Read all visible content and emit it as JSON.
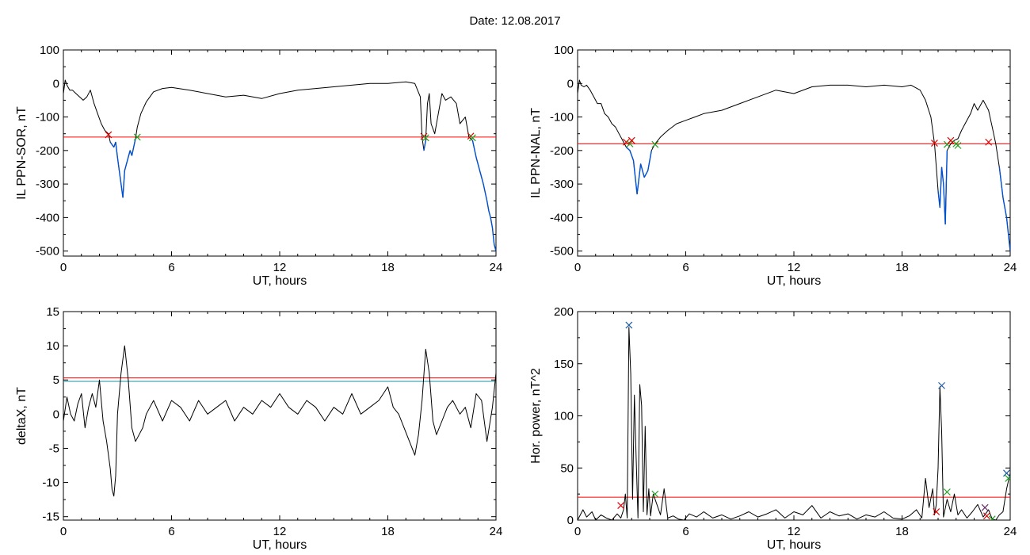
{
  "figure": {
    "title": "Date:  12.08.2017"
  },
  "chart_data": [
    {
      "type": "line",
      "xlabel": "UT, hours",
      "ylabel": "IL PPN-SOR, nT",
      "xlim": [
        0,
        24
      ],
      "ylim": [
        -515,
        100
      ],
      "xticks": [
        0,
        6,
        12,
        18,
        24
      ],
      "yticks": [
        100,
        0,
        -100,
        -200,
        -300,
        -400,
        -500
      ],
      "threshold": {
        "value": -160,
        "color": "#ff0000"
      },
      "series": [
        {
          "color": "#000000",
          "highlight_color": "#0050d0",
          "highlight_below": -160,
          "x": [
            0,
            0.1,
            0.2,
            0.35,
            0.5,
            0.7,
            0.9,
            1.1,
            1.3,
            1.5,
            1.7,
            1.9,
            2.1,
            2.3,
            2.5,
            2.6,
            2.8,
            2.9,
            3.0,
            3.1,
            3.2,
            3.3,
            3.4,
            3.5,
            3.6,
            3.7,
            3.8,
            3.9,
            4.0,
            4.1,
            4.3,
            4.6,
            5.0,
            5.5,
            6.0,
            7.0,
            8.0,
            9.0,
            10.0,
            11.0,
            12.0,
            13.0,
            14.0,
            15.0,
            16.0,
            17.0,
            18.0,
            19.0,
            19.5,
            19.8,
            19.9,
            20.0,
            20.1,
            20.2,
            20.3,
            20.4,
            20.6,
            20.8,
            21.0,
            21.2,
            21.5,
            21.8,
            22.0,
            22.3,
            22.5,
            22.7,
            22.9,
            23.1,
            23.3,
            23.5,
            23.6,
            23.7,
            23.8,
            23.9,
            24.0
          ],
          "y": [
            -30,
            10,
            -5,
            -20,
            -20,
            -30,
            -40,
            -50,
            -40,
            -20,
            -60,
            -90,
            -120,
            -140,
            -150,
            -175,
            -190,
            -175,
            -220,
            -260,
            -300,
            -340,
            -260,
            -240,
            -220,
            -200,
            -215,
            -190,
            -165,
            -130,
            -90,
            -55,
            -25,
            -15,
            -12,
            -20,
            -30,
            -40,
            -35,
            -45,
            -30,
            -20,
            -15,
            -10,
            -5,
            0,
            0,
            5,
            0,
            -40,
            -160,
            -200,
            -170,
            -60,
            -30,
            -120,
            -150,
            -90,
            -30,
            -50,
            -40,
            -60,
            -120,
            -100,
            -160,
            -170,
            -220,
            -260,
            -300,
            -350,
            -380,
            -400,
            -430,
            -480,
            -500
          ]
        }
      ],
      "markers": [
        {
          "x": 2.5,
          "y": -153,
          "color": "#e00000"
        },
        {
          "x": 4.1,
          "y": -160,
          "color": "#20a020"
        },
        {
          "x": 20.0,
          "y": -158,
          "color": "#e00000"
        },
        {
          "x": 20.1,
          "y": -162,
          "color": "#20a020"
        },
        {
          "x": 22.6,
          "y": -157,
          "color": "#e00000"
        },
        {
          "x": 22.7,
          "y": -162,
          "color": "#20a020"
        }
      ]
    },
    {
      "type": "line",
      "xlabel": "UT, hours",
      "ylabel": "IL PPN-NAL, nT",
      "xlim": [
        0,
        24
      ],
      "ylim": [
        -515,
        100
      ],
      "xticks": [
        0,
        6,
        12,
        18,
        24
      ],
      "yticks": [
        100,
        0,
        -100,
        -200,
        -300,
        -400,
        -500
      ],
      "threshold": {
        "value": -180,
        "color": "#ff0000"
      },
      "series": [
        {
          "color": "#000000",
          "highlight_color": "#0050d0",
          "highlight_below": -180,
          "x": [
            0,
            0.1,
            0.2,
            0.35,
            0.5,
            0.7,
            0.9,
            1.1,
            1.3,
            1.5,
            1.7,
            1.9,
            2.1,
            2.3,
            2.5,
            2.7,
            2.9,
            3.1,
            3.3,
            3.5,
            3.7,
            3.9,
            4.1,
            4.3,
            4.6,
            5.0,
            5.5,
            6.0,
            6.5,
            7.0,
            8.0,
            9.0,
            10.0,
            11.0,
            12.0,
            13.0,
            14.0,
            15.0,
            16.0,
            17.0,
            18.0,
            18.5,
            19.0,
            19.3,
            19.6,
            19.8,
            20.0,
            20.1,
            20.2,
            20.3,
            20.4,
            20.5,
            20.7,
            20.9,
            21.1,
            21.3,
            21.5,
            21.8,
            22.0,
            22.2,
            22.5,
            22.8,
            23.0,
            23.2,
            23.4,
            23.6,
            23.8,
            24.0
          ],
          "y": [
            -30,
            10,
            -5,
            -10,
            -5,
            -20,
            -40,
            -60,
            -60,
            -90,
            -100,
            -120,
            -130,
            -150,
            -170,
            -190,
            -200,
            -230,
            -330,
            -240,
            -280,
            -260,
            -200,
            -180,
            -160,
            -140,
            -120,
            -110,
            -100,
            -90,
            -80,
            -60,
            -40,
            -20,
            -30,
            -10,
            -5,
            -5,
            -10,
            -5,
            -10,
            -5,
            -20,
            -50,
            -100,
            -180,
            -320,
            -370,
            -250,
            -300,
            -420,
            -200,
            -180,
            -170,
            -165,
            -140,
            -120,
            -90,
            -60,
            -80,
            -50,
            -80,
            -130,
            -180,
            -250,
            -340,
            -400,
            -500
          ]
        }
      ],
      "markers": [
        {
          "x": 2.7,
          "y": -175,
          "color": "#e00000"
        },
        {
          "x": 2.9,
          "y": -180,
          "color": "#20a020"
        },
        {
          "x": 3.0,
          "y": -170,
          "color": "#e00000"
        },
        {
          "x": 4.3,
          "y": -182,
          "color": "#20a020"
        },
        {
          "x": 19.8,
          "y": -178,
          "color": "#e00000"
        },
        {
          "x": 20.5,
          "y": -182,
          "color": "#20a020"
        },
        {
          "x": 20.7,
          "y": -170,
          "color": "#e00000"
        },
        {
          "x": 21.0,
          "y": -180,
          "color": "#20a020"
        },
        {
          "x": 21.1,
          "y": -185,
          "color": "#20a020"
        },
        {
          "x": 22.8,
          "y": -175,
          "color": "#e00000"
        }
      ]
    },
    {
      "type": "line",
      "xlabel": "UT, hours",
      "ylabel": "deltaX, nT",
      "xlim": [
        0,
        24
      ],
      "ylim": [
        -15.5,
        15
      ],
      "xticks": [
        0,
        6,
        12,
        18,
        24
      ],
      "yticks": [
        15,
        10,
        5,
        0,
        -5,
        -10,
        -15
      ],
      "thresholds": [
        {
          "value": 5.3,
          "color": "#ff0000"
        },
        {
          "value": 4.8,
          "color": "#2090a0"
        }
      ],
      "series": [
        {
          "color": "#000000",
          "x": [
            0,
            0.2,
            0.4,
            0.6,
            0.8,
            1.0,
            1.2,
            1.4,
            1.6,
            1.8,
            2.0,
            2.2,
            2.4,
            2.6,
            2.7,
            2.8,
            2.9,
            3.0,
            3.2,
            3.4,
            3.6,
            3.8,
            4.0,
            4.2,
            4.4,
            4.6,
            4.8,
            5.0,
            5.5,
            6.0,
            6.5,
            7.0,
            7.5,
            8.0,
            8.5,
            9.0,
            9.5,
            10.0,
            10.5,
            11.0,
            11.5,
            12.0,
            12.5,
            13.0,
            13.5,
            14.0,
            14.5,
            15.0,
            15.5,
            16.0,
            16.5,
            17.0,
            17.5,
            18.0,
            18.3,
            18.6,
            18.9,
            19.2,
            19.5,
            19.7,
            19.9,
            20.1,
            20.3,
            20.5,
            20.7,
            21.0,
            21.3,
            21.6,
            22.0,
            22.3,
            22.6,
            22.9,
            23.2,
            23.5,
            23.8,
            24.0
          ],
          "y": [
            -1,
            2.5,
            0,
            -1,
            1.5,
            3,
            -2,
            1,
            3,
            1,
            5,
            -1,
            -4,
            -8,
            -11,
            -12,
            -9,
            0,
            6,
            10,
            5,
            -2,
            -4,
            -3,
            -2,
            0,
            1,
            2,
            -1,
            2,
            1,
            -1,
            2,
            0,
            1,
            2,
            -1,
            1,
            0,
            2,
            1,
            3,
            1,
            0,
            2,
            1,
            -1,
            1,
            0,
            3,
            0,
            1,
            2,
            4,
            1,
            0,
            -2,
            -4,
            -6,
            -3,
            2,
            9.5,
            6,
            -1,
            -3,
            -1,
            1,
            2,
            0,
            1,
            -2,
            3,
            2,
            -4,
            1,
            6
          ]
        }
      ]
    },
    {
      "type": "line",
      "xlabel": "UT, hours",
      "ylabel": "Hor. power, nT^2",
      "xlim": [
        0,
        24
      ],
      "ylim": [
        0,
        200
      ],
      "xticks": [
        0,
        6,
        12,
        18,
        24
      ],
      "yticks": [
        200,
        150,
        100,
        50,
        0
      ],
      "threshold": {
        "value": 22,
        "color": "#ff0000"
      },
      "series": [
        {
          "color": "#000000",
          "x": [
            0,
            0.3,
            0.5,
            0.8,
            1.0,
            1.3,
            1.6,
            1.9,
            2.2,
            2.4,
            2.55,
            2.65,
            2.75,
            2.85,
            2.95,
            3.05,
            3.15,
            3.25,
            3.35,
            3.45,
            3.55,
            3.65,
            3.75,
            3.85,
            3.95,
            4.05,
            4.2,
            4.4,
            4.6,
            4.8,
            5.0,
            5.3,
            5.6,
            5.9,
            6.2,
            6.6,
            7.0,
            7.5,
            8.0,
            8.5,
            9.0,
            9.5,
            10.0,
            10.5,
            11.0,
            11.5,
            12.0,
            12.5,
            13.0,
            13.5,
            14.0,
            14.5,
            15.0,
            15.5,
            16.0,
            16.5,
            17.0,
            17.5,
            18.0,
            18.4,
            18.8,
            19.1,
            19.3,
            19.5,
            19.7,
            19.8,
            19.9,
            20.0,
            20.1,
            20.2,
            20.3,
            20.5,
            20.7,
            20.9,
            21.1,
            21.3,
            21.6,
            21.9,
            22.2,
            22.5,
            22.8,
            23.0,
            23.2,
            23.4,
            23.6,
            23.8,
            24.0
          ],
          "y": [
            0,
            10,
            3,
            8,
            0,
            5,
            2,
            0,
            6,
            2,
            10,
            25,
            2,
            185,
            140,
            20,
            120,
            60,
            2,
            130,
            110,
            8,
            90,
            5,
            30,
            4,
            25,
            15,
            5,
            30,
            2,
            4,
            1,
            0,
            6,
            3,
            8,
            2,
            5,
            1,
            4,
            8,
            3,
            6,
            10,
            2,
            8,
            5,
            14,
            2,
            8,
            4,
            6,
            1,
            5,
            3,
            8,
            2,
            1,
            4,
            10,
            2,
            40,
            12,
            30,
            5,
            15,
            50,
            128,
            85,
            3,
            20,
            8,
            25,
            5,
            10,
            2,
            8,
            15,
            3,
            10,
            1,
            0,
            5,
            8,
            30,
            45
          ]
        }
      ],
      "markers": [
        {
          "x": 2.4,
          "y": 14,
          "color": "#e00000"
        },
        {
          "x": 2.85,
          "y": 187,
          "color": "#1e5aa0"
        },
        {
          "x": 4.3,
          "y": 25,
          "color": "#20a020"
        },
        {
          "x": 19.9,
          "y": 8,
          "color": "#e00000"
        },
        {
          "x": 20.2,
          "y": 129,
          "color": "#1e5aa0"
        },
        {
          "x": 20.5,
          "y": 27,
          "color": "#20a020"
        },
        {
          "x": 22.6,
          "y": 12,
          "color": "#6a2a6a"
        },
        {
          "x": 22.7,
          "y": 4,
          "color": "#e00000"
        },
        {
          "x": 23.0,
          "y": 1,
          "color": "#20a020"
        },
        {
          "x": 23.8,
          "y": 45,
          "color": "#1e5aa0"
        },
        {
          "x": 23.9,
          "y": 40,
          "color": "#20a020"
        }
      ]
    }
  ]
}
